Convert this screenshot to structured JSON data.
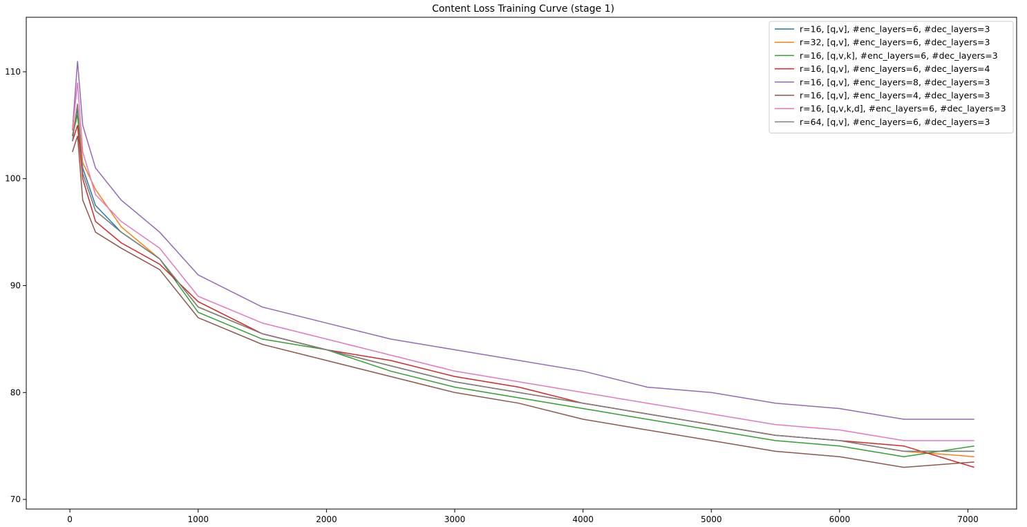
{
  "chart_data": {
    "type": "line",
    "title": "Content Loss Training Curve (stage 1)",
    "xlabel": "",
    "ylabel": "",
    "xlim": [
      -340,
      7380
    ],
    "ylim": [
      69.1,
      115.1
    ],
    "x_ticks": [
      0,
      1000,
      2000,
      3000,
      4000,
      5000,
      6000,
      7000
    ],
    "y_ticks": [
      70,
      80,
      90,
      100,
      110
    ],
    "grid": false,
    "legend_position": "top-right",
    "series": [
      {
        "name": "r=16, [q,v], #enc_layers=6, #dec_layers=3",
        "color": "#1f77b4",
        "x": [
          20,
          60,
          100,
          200,
          400,
          700,
          1000,
          1500,
          2000,
          2500,
          3000,
          3500,
          4000,
          4500,
          5000,
          5500,
          6000,
          6500,
          7050
        ],
        "y": [
          104.0,
          106.5,
          101.0,
          97.5,
          95.0,
          92.5,
          88.0,
          85.5,
          84.0,
          82.5,
          81.0,
          80.0,
          79.0,
          78.0,
          77.0,
          76.0,
          75.5,
          74.5,
          74.5
        ]
      },
      {
        "name": "r=32, [q,v], #enc_layers=6, #dec_layers=3",
        "color": "#ff7f0e",
        "x": [
          20,
          60,
          100,
          200,
          400,
          700,
          1000,
          1500,
          2000,
          2500,
          3000,
          3500,
          4000,
          4500,
          5000,
          5500,
          6000,
          6500,
          7050
        ],
        "y": [
          104.0,
          107.0,
          101.5,
          99.0,
          95.5,
          92.5,
          88.0,
          85.5,
          84.0,
          82.5,
          81.0,
          80.0,
          79.0,
          78.0,
          77.0,
          76.0,
          75.5,
          74.5,
          74.0
        ]
      },
      {
        "name": "r=16, [q,v,k], #enc_layers=6, #dec_layers=3",
        "color": "#2ca02c",
        "x": [
          20,
          60,
          100,
          200,
          400,
          700,
          1000,
          1500,
          2000,
          2500,
          3000,
          3500,
          4000,
          4500,
          5000,
          5500,
          6000,
          6500,
          7050
        ],
        "y": [
          104.0,
          106.0,
          100.5,
          97.0,
          95.0,
          92.5,
          87.5,
          85.0,
          84.0,
          82.0,
          80.5,
          79.5,
          78.5,
          77.5,
          76.5,
          75.5,
          75.0,
          74.0,
          75.0
        ]
      },
      {
        "name": "r=16, [q,v], #enc_layers=6, #dec_layers=4",
        "color": "#d62728",
        "x": [
          20,
          60,
          100,
          200,
          400,
          700,
          1000,
          1500,
          2000,
          2500,
          3000,
          3500,
          4000,
          4500,
          5000,
          5500,
          6000,
          6500,
          7050
        ],
        "y": [
          103.5,
          105.0,
          100.0,
          96.0,
          94.0,
          92.0,
          88.5,
          85.5,
          84.0,
          83.0,
          81.5,
          80.5,
          79.0,
          78.0,
          77.0,
          76.0,
          75.5,
          75.0,
          73.0
        ]
      },
      {
        "name": "r=16, [q,v], #enc_layers=8, #dec_layers=3",
        "color": "#9467bd",
        "x": [
          20,
          60,
          100,
          200,
          400,
          700,
          1000,
          1500,
          2000,
          2500,
          3000,
          3500,
          4000,
          4500,
          5000,
          5500,
          6000,
          6500,
          7050
        ],
        "y": [
          104.5,
          111.0,
          105.0,
          101.0,
          98.0,
          95.0,
          91.0,
          88.0,
          86.5,
          85.0,
          84.0,
          83.0,
          82.0,
          80.5,
          80.0,
          79.0,
          78.5,
          77.5,
          77.5
        ]
      },
      {
        "name": "r=16, [q,v], #enc_layers=4, #dec_layers=3",
        "color": "#8c564b",
        "x": [
          20,
          60,
          100,
          200,
          400,
          700,
          1000,
          1500,
          2000,
          2500,
          3000,
          3500,
          4000,
          4500,
          5000,
          5500,
          6000,
          6500,
          7050
        ],
        "y": [
          102.5,
          104.0,
          98.0,
          95.0,
          93.5,
          91.5,
          87.0,
          84.5,
          83.0,
          81.5,
          80.0,
          79.0,
          77.5,
          76.5,
          75.5,
          74.5,
          74.0,
          73.0,
          73.5
        ]
      },
      {
        "name": "r=16, [q,v,k,d], #enc_layers=6, #dec_layers=3",
        "color": "#e377c2",
        "x": [
          20,
          60,
          100,
          200,
          400,
          700,
          1000,
          1500,
          2000,
          2500,
          3000,
          3500,
          4000,
          4500,
          5000,
          5500,
          6000,
          6500,
          7050
        ],
        "y": [
          104.5,
          109.0,
          102.5,
          98.5,
          96.0,
          93.5,
          89.0,
          86.5,
          85.0,
          83.5,
          82.0,
          81.0,
          80.0,
          79.0,
          78.0,
          77.0,
          76.5,
          75.5,
          75.5
        ]
      },
      {
        "name": "r=64, [q,v], #enc_layers=6, #dec_layers=3",
        "color": "#7f7f7f",
        "x": [
          20,
          60,
          100,
          200,
          400,
          700,
          1000,
          1500,
          2000,
          2500,
          3000,
          3500,
          4000,
          4500,
          5000,
          5500,
          6000,
          6500,
          7050
        ],
        "y": [
          103.5,
          107.0,
          100.5,
          97.0,
          95.0,
          92.5,
          88.0,
          85.5,
          84.0,
          82.5,
          81.0,
          80.0,
          79.0,
          78.0,
          77.0,
          76.0,
          75.5,
          74.5,
          74.5
        ]
      }
    ]
  }
}
